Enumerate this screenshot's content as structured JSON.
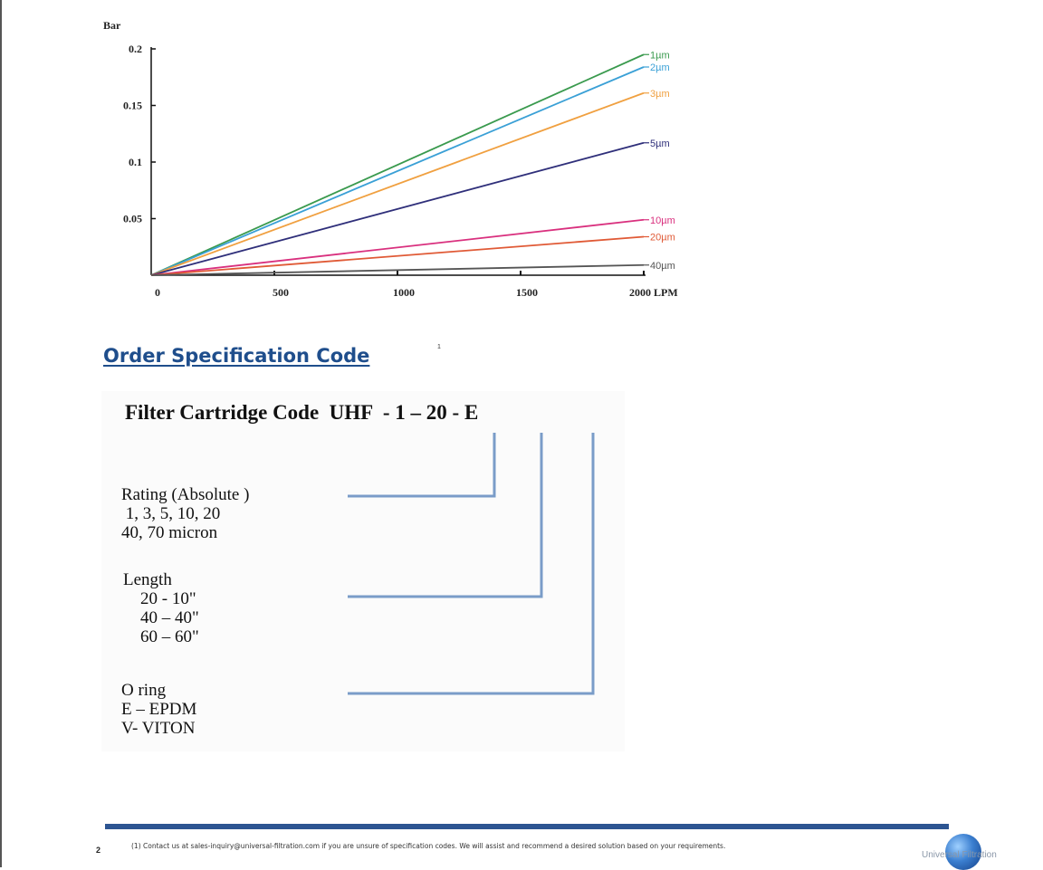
{
  "chart_data": {
    "type": "line",
    "ylabel": "Bar",
    "xlabel": "LPM",
    "x_ticks": [
      "0",
      "500",
      "1000",
      "1500",
      "2000 LPM"
    ],
    "x_tick_values": [
      0,
      500,
      1000,
      1500,
      2000
    ],
    "y_ticks": [
      "0.2",
      "0.15",
      "0.1",
      "0.05"
    ],
    "y_tick_values": [
      0.2,
      0.15,
      0.1,
      0.05
    ],
    "xlim": [
      0,
      2000
    ],
    "ylim": [
      0,
      0.2
    ],
    "series": [
      {
        "name": "1µm",
        "x": [
          0,
          2000
        ],
        "y": [
          0,
          0.195
        ],
        "color": "#3a9a4e"
      },
      {
        "name": "2µm",
        "x": [
          0,
          2000
        ],
        "y": [
          0,
          0.184
        ],
        "color": "#3aa0d6"
      },
      {
        "name": "3µm",
        "x": [
          0,
          2000
        ],
        "y": [
          0,
          0.161
        ],
        "color": "#f0a040"
      },
      {
        "name": "5µm",
        "x": [
          0,
          2000
        ],
        "y": [
          0,
          0.117
        ],
        "color": "#2f2f7a"
      },
      {
        "name": "10µm",
        "x": [
          0,
          2000
        ],
        "y": [
          0,
          0.049
        ],
        "color": "#d9307e"
      },
      {
        "name": "20µm",
        "x": [
          0,
          2000
        ],
        "y": [
          0,
          0.034
        ],
        "color": "#e05a36"
      },
      {
        "name": "40µm",
        "x": [
          0,
          2000
        ],
        "y": [
          0,
          0.009
        ],
        "color": "#555555"
      }
    ]
  },
  "order_section": {
    "title": "Order Specification Code",
    "footnote_marker": "1"
  },
  "spec": {
    "code_line": "Filter Cartridge Code  UHF  - 1 – 20 - E",
    "rating": {
      "title": "Rating (Absolute )",
      "lines": [
        " 1, 3, 5, 10, 20",
        "40, 70 micron"
      ]
    },
    "length": {
      "title": "Length",
      "lines": [
        "    20 - 10\"",
        "    40 – 40\"",
        "    60 – 60\""
      ]
    },
    "oring": {
      "title": "O ring",
      "lines": [
        "E – EPDM",
        "V- VITON"
      ]
    },
    "connector_color": "#7a9cc8"
  },
  "footer": {
    "page_number": "2",
    "footnote": "(1) Contact us at sales-inquiry@universal-filtration.com if you are unsure of specification codes. We will assist and recommend a desired solution based on your requirements.",
    "logo_text": "Universal Filtration",
    "bar_color": "#2d5592"
  }
}
